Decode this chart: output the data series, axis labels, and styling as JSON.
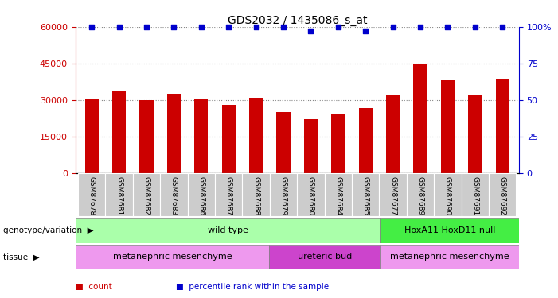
{
  "title": "GDS2032 / 1435086_s_at",
  "samples": [
    "GSM87678",
    "GSM87681",
    "GSM87682",
    "GSM87683",
    "GSM87686",
    "GSM87687",
    "GSM87688",
    "GSM87679",
    "GSM87680",
    "GSM87684",
    "GSM87685",
    "GSM87677",
    "GSM87689",
    "GSM87690",
    "GSM87691",
    "GSM87692"
  ],
  "counts": [
    30500,
    33500,
    30000,
    32500,
    30500,
    28000,
    31000,
    25000,
    22000,
    24000,
    26500,
    32000,
    45000,
    38000,
    32000,
    38500
  ],
  "percentile": [
    100,
    100,
    100,
    100,
    100,
    100,
    100,
    100,
    97,
    100,
    97,
    100,
    100,
    100,
    100,
    100
  ],
  "ylim_left": [
    0,
    60000
  ],
  "ylim_right": [
    0,
    100
  ],
  "yticks_left": [
    0,
    15000,
    30000,
    45000,
    60000
  ],
  "yticks_right": [
    0,
    25,
    50,
    75,
    100
  ],
  "bar_color": "#cc0000",
  "dot_color": "#0000cc",
  "genotype_groups": [
    {
      "label": "wild type",
      "start": 0,
      "end": 11,
      "color": "#aaffaa"
    },
    {
      "label": "HoxA11 HoxD11 null",
      "start": 11,
      "end": 16,
      "color": "#44ee44"
    }
  ],
  "tissue_groups": [
    {
      "label": "metanephric mesenchyme",
      "start": 0,
      "end": 7,
      "color": "#ee99ee"
    },
    {
      "label": "ureteric bud",
      "start": 7,
      "end": 11,
      "color": "#cc44cc"
    },
    {
      "label": "metanephric mesenchyme",
      "start": 11,
      "end": 16,
      "color": "#ee99ee"
    }
  ],
  "legend_items": [
    {
      "label": "count",
      "color": "#cc0000"
    },
    {
      "label": "percentile rank within the sample",
      "color": "#0000cc"
    }
  ],
  "bg_color": "#ffffff",
  "sample_bg_color": "#cccccc",
  "grid_color": "#888888",
  "left_label_color": "#cc0000",
  "right_label_color": "#0000cc",
  "right_tick_labels": [
    "0",
    "25",
    "50",
    "75",
    "100%"
  ]
}
